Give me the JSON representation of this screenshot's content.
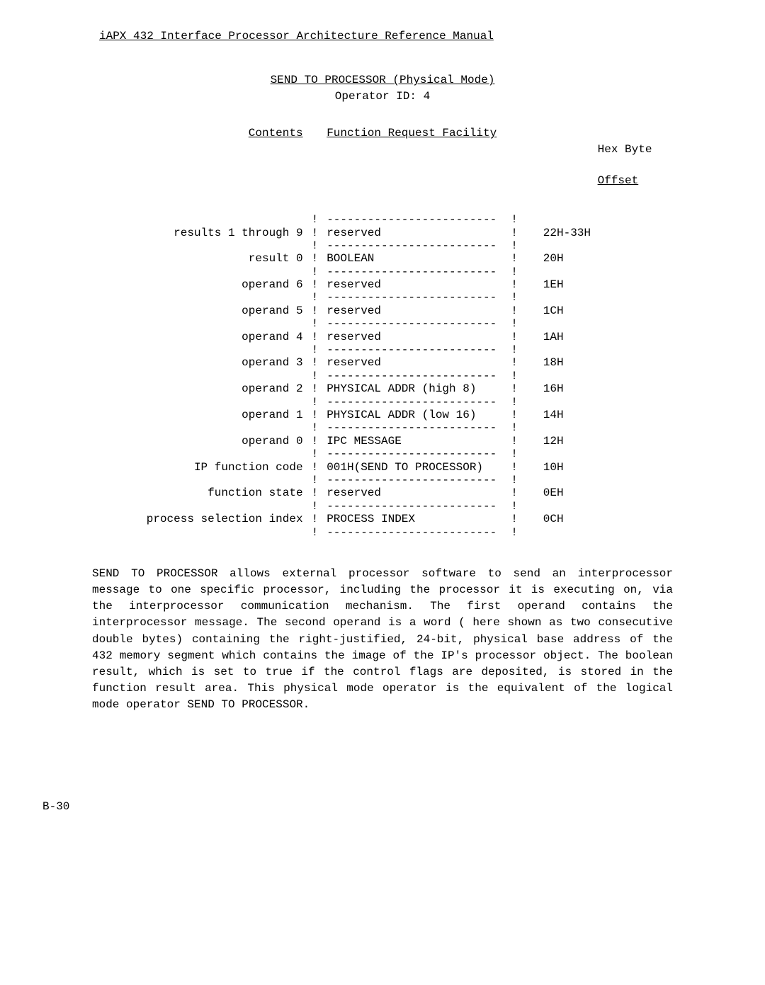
{
  "header": {
    "title": "iAPX 432 Interface Processor Architecture Reference Manual"
  },
  "section": {
    "title_line1": "SEND TO PROCESSOR (Physical Mode)",
    "title_line2": "Operator ID:  4"
  },
  "columns": {
    "contents_label": "Contents",
    "function_label": "Function Request Facility",
    "offset_label_l1": "Hex Byte",
    "offset_label_l2": "Offset"
  },
  "rows": [
    {
      "contents": "results 1 through 9",
      "func": "reserved",
      "offset": "22H-33H"
    },
    {
      "contents": "result 0",
      "func": "BOOLEAN",
      "offset": "20H"
    },
    {
      "contents": "operand 6",
      "func": "reserved",
      "offset": "1EH"
    },
    {
      "contents": "operand 5",
      "func": "reserved",
      "offset": "1CH"
    },
    {
      "contents": "operand 4",
      "func": "reserved",
      "offset": "1AH"
    },
    {
      "contents": "operand 3",
      "func": "reserved",
      "offset": "18H"
    },
    {
      "contents": "operand 2",
      "func": "PHYSICAL ADDR (high 8)",
      "offset": "16H"
    },
    {
      "contents": "operand 1",
      "func": "PHYSICAL ADDR (low 16)",
      "offset": "14H"
    },
    {
      "contents": "operand 0",
      "func": "IPC MESSAGE",
      "offset": "12H"
    },
    {
      "contents": "IP function code",
      "func": "001H(SEND TO PROCESSOR)",
      "offset": "10H"
    },
    {
      "contents": "function state",
      "func": "reserved",
      "offset": "0EH"
    },
    {
      "contents": "process selection index",
      "func": "PROCESS INDEX",
      "offset": "0CH"
    }
  ],
  "separator": "-------------------------",
  "bang": "!",
  "body": "SEND TO PROCESSOR allows external processor software to send an interprocessor message to one specific processor, including the processor it is executing on, via the interprocessor communication mechanism.  The first operand contains the interprocessor message. The second operand is a word ( here shown as two consecutive double bytes) containing the right-justified, 24-bit, physical base address of the 432 memory segment which contains the image of the IP's processor object.  The boolean result, which is set to true if the control flags are deposited, is stored in the function result area. This physical mode operator is the equivalent of the logical mode operator SEND TO PROCESSOR.",
  "page_number": "B-30"
}
